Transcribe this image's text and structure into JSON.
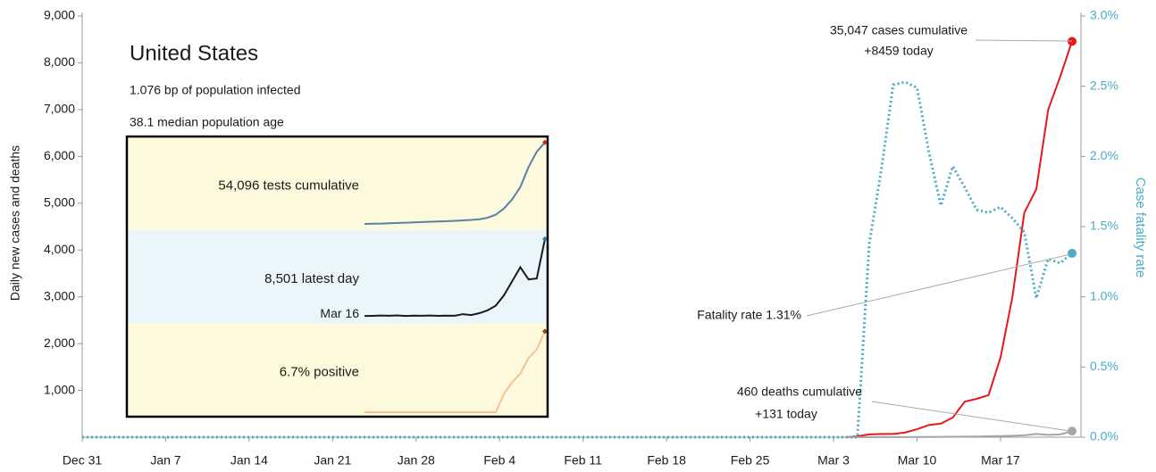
{
  "chart_data": [
    {
      "type": "line",
      "title": "United States",
      "subtitle": [
        "1.076 bp of population infected",
        "38.1 median population age"
      ],
      "y_label": "Daily new cases and deaths",
      "y2_label": "Case fatality rate",
      "xlim": [
        0,
        83.5
      ],
      "xticks": [
        {
          "value": 0,
          "label": "Dec 31"
        },
        {
          "value": 7,
          "label": "Jan 7"
        },
        {
          "value": 14,
          "label": "Jan 14"
        },
        {
          "value": 21,
          "label": "Jan 21"
        },
        {
          "value": 28,
          "label": "Jan 28"
        },
        {
          "value": 35,
          "label": "Feb 4"
        },
        {
          "value": 42,
          "label": "Feb 11"
        },
        {
          "value": 49,
          "label": "Feb 18"
        },
        {
          "value": 56,
          "label": "Feb 25"
        },
        {
          "value": 63,
          "label": "Mar 3"
        },
        {
          "value": 70,
          "label": "Mar 10"
        },
        {
          "value": 77,
          "label": "Mar 17"
        }
      ],
      "ylim": [
        0,
        9000
      ],
      "yticks": [
        {
          "value": 1000,
          "label": "1,000"
        },
        {
          "value": 2000,
          "label": "2,000"
        },
        {
          "value": 3000,
          "label": "3,000"
        },
        {
          "value": 4000,
          "label": "4,000"
        },
        {
          "value": 5000,
          "label": "5,000"
        },
        {
          "value": 6000,
          "label": "6,000"
        },
        {
          "value": 7000,
          "label": "7,000"
        },
        {
          "value": 8000,
          "label": "8,000"
        },
        {
          "value": 9000,
          "label": "9,000"
        }
      ],
      "y2lim": [
        0,
        3
      ],
      "y2ticks": [
        {
          "value": 0,
          "label": "0.0%"
        },
        {
          "value": 0.5,
          "label": "0.5%"
        },
        {
          "value": 1,
          "label": "1.0%"
        },
        {
          "value": 1.5,
          "label": "1.5%"
        },
        {
          "value": 2,
          "label": "2.0%"
        },
        {
          "value": 2.5,
          "label": "2.5%"
        },
        {
          "value": 3,
          "label": "3.0%"
        }
      ],
      "y2_color": "#4bacc6",
      "series": [
        {
          "color": "#e8191e",
          "end_marker": true,
          "x": [
            64,
            65,
            66,
            67,
            68,
            69,
            70,
            71,
            72,
            73,
            74,
            75,
            76,
            77,
            78,
            79,
            80,
            81,
            82,
            83
          ],
          "values": [
            0,
            20,
            60,
            70,
            70,
            100,
            170,
            260,
            290,
            420,
            760,
            820,
            900,
            1700,
            3000,
            4800,
            5300,
            7000,
            7700,
            8459
          ]
        },
        {
          "color": "#a6a6a6",
          "end_marker": true,
          "x": [
            64,
            65,
            66,
            67,
            68,
            69,
            70,
            71,
            72,
            73,
            74,
            75,
            76,
            77,
            78,
            79,
            80,
            81,
            82,
            83
          ],
          "values": [
            0,
            1,
            1,
            2,
            3,
            3,
            4,
            5,
            8,
            10,
            12,
            15,
            22,
            25,
            30,
            40,
            70,
            50,
            60,
            131
          ]
        },
        {
          "color": "#4bacc6",
          "axis": "y2",
          "dotted": true,
          "end_marker": true,
          "x": [
            0,
            65,
            66,
            67,
            68,
            69,
            70,
            71,
            72,
            73,
            74,
            75,
            76,
            77,
            78,
            79,
            80,
            81,
            82,
            83
          ],
          "values": [
            0,
            0,
            1.38,
            1.9,
            2.51,
            2.53,
            2.49,
            2.03,
            1.65,
            1.93,
            1.78,
            1.62,
            1.6,
            1.64,
            1.56,
            1.46,
            0.99,
            1.27,
            1.24,
            1.31
          ]
        }
      ],
      "annotations": [
        "35,047 cases cumulative",
        "+8459 today",
        "Fatality rate 1.31%",
        "460 deaths cumulative",
        "+131 today"
      ]
    },
    {
      "type": "sparkline",
      "panels": [
        {
          "label": "54,096 tests cumulative",
          "color": "#5b7fa6",
          "band": "#fdf9dc",
          "marker_color": "#e8191e",
          "ylim": [
            0,
            55000
          ],
          "values": [
            1000,
            1100,
            1200,
            1400,
            1600,
            1800,
            2000,
            2200,
            2400,
            2600,
            2800,
            3000,
            3300,
            3600,
            4000,
            5000,
            7000,
            11000,
            17000,
            25000,
            38000,
            48000,
            54096
          ]
        },
        {
          "label": "8,501 latest day",
          "start_label": "Mar 16",
          "color": "#1a1a1a",
          "band": "#eaf6fb",
          "marker_color": "#2e75b6",
          "ylim": [
            0,
            9000
          ],
          "values": [
            300,
            320,
            350,
            330,
            360,
            300,
            340,
            330,
            350,
            320,
            340,
            330,
            500,
            400,
            600,
            900,
            1400,
            2500,
            4000,
            5500,
            4200,
            4300,
            8501
          ]
        },
        {
          "label": "6.7% positive",
          "color": "#f4c396",
          "band": "#fdf9dc",
          "marker_color": "#8b4513",
          "ylim": [
            0,
            7
          ],
          "values": [
            0,
            0,
            0,
            0,
            0,
            0,
            0,
            0,
            0,
            0,
            0,
            0,
            0,
            0,
            0,
            0,
            0,
            1.5,
            2.5,
            3.2,
            4.5,
            5.2,
            6.7
          ]
        }
      ]
    }
  ]
}
